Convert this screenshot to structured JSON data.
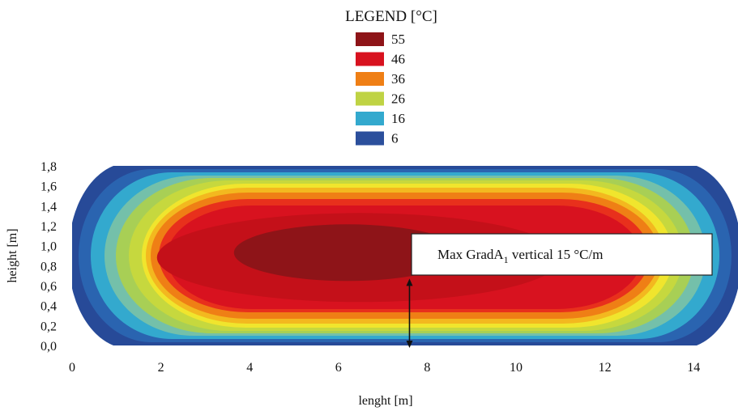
{
  "chart_data": {
    "type": "heatmap",
    "legend": {
      "title": "LEGEND [°C]",
      "entries": [
        {
          "label": "55",
          "color": "#8e1418"
        },
        {
          "label": "46",
          "color": "#d8121f"
        },
        {
          "label": "36",
          "color": "#ef7f15"
        },
        {
          "label": "26",
          "color": "#bfd344"
        },
        {
          "label": "16",
          "color": "#33a9ce"
        },
        {
          "label": "6",
          "color": "#2b4f9c"
        }
      ]
    },
    "xlabel": "lenght [m]",
    "ylabel": "height [m]",
    "xlim": [
      0,
      15
    ],
    "ylim": [
      0,
      1.8
    ],
    "x_ticks": [
      "0",
      "2",
      "4",
      "6",
      "8",
      "10",
      "12",
      "14"
    ],
    "y_ticks": [
      "0,0",
      "0,2",
      "0,4",
      "0,6",
      "0,8",
      "1,0",
      "1,2",
      "1,4",
      "1,6",
      "1,8"
    ],
    "hotspot": {
      "x": 6.2,
      "y": 0.93,
      "max_temp": 55
    },
    "annotation": {
      "text_main": "Max GradA",
      "text_sub": "1",
      "text_rest": " vertical 15 °C/m",
      "arrow_x": 7.6,
      "arrow_y_from": 0.0,
      "arrow_y_to": 0.67
    }
  }
}
